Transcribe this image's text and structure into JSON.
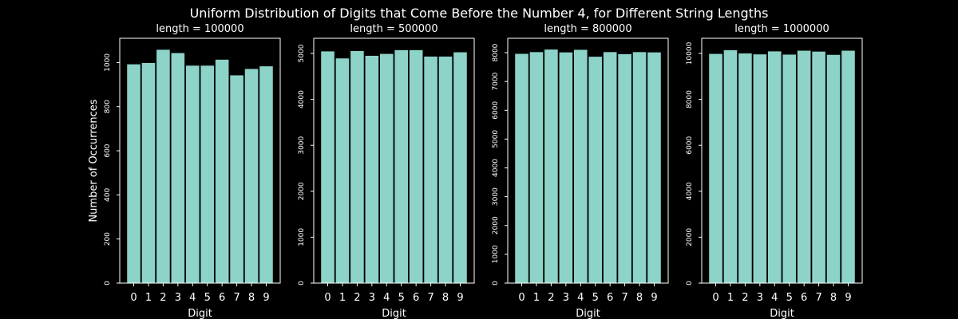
{
  "figure": {
    "suptitle": "Uniform Distribution of Digits that Come Before the Number 4, for Different String Lengths",
    "background": "#000000",
    "bar_color": "#8dd3c7",
    "text_color": "#ffffff"
  },
  "chart_data": [
    {
      "type": "bar",
      "title": "length = 100000",
      "xlabel": "Digit",
      "ylabel": "Number of Occurrences",
      "categories": [
        "0",
        "1",
        "2",
        "3",
        "4",
        "5",
        "6",
        "7",
        "8",
        "9"
      ],
      "values": [
        992,
        998,
        1058,
        1043,
        986,
        986,
        1013,
        942,
        971,
        983
      ],
      "ylim": [
        0,
        1110
      ],
      "yticks": [
        0,
        200,
        400,
        600,
        800,
        1000
      ],
      "ytick_labels": [
        "0",
        "200",
        "400",
        "600",
        "800",
        "1000"
      ]
    },
    {
      "type": "bar",
      "title": "length = 500000",
      "xlabel": "Digit",
      "ylabel": "",
      "categories": [
        "0",
        "1",
        "2",
        "3",
        "4",
        "5",
        "6",
        "7",
        "8",
        "9"
      ],
      "values": [
        5045,
        4892,
        5052,
        4949,
        4990,
        5072,
        5072,
        4932,
        4932,
        5025
      ],
      "ylim": [
        0,
        5330
      ],
      "yticks": [
        0,
        1000,
        2000,
        3000,
        4000,
        5000
      ],
      "ytick_labels": [
        "0",
        "1000",
        "2000",
        "3000",
        "4000",
        "5000"
      ]
    },
    {
      "type": "bar",
      "title": "length = 800000",
      "xlabel": "Digit",
      "ylabel": "",
      "categories": [
        "0",
        "1",
        "2",
        "3",
        "4",
        "5",
        "6",
        "7",
        "8",
        "9"
      ],
      "values": [
        7960,
        8020,
        8110,
        8010,
        8100,
        7860,
        8020,
        7950,
        8020,
        8010
      ],
      "ylim": [
        0,
        8500
      ],
      "yticks": [
        0,
        1000,
        2000,
        3000,
        4000,
        5000,
        6000,
        7000,
        8000
      ],
      "ytick_labels": [
        "0",
        "1000",
        "2000",
        "3000",
        "4000",
        "5000",
        "6000",
        "7000",
        "8000"
      ]
    },
    {
      "type": "bar",
      "title": "length = 1000000",
      "xlabel": "Digit",
      "ylabel": "",
      "categories": [
        "0",
        "1",
        "2",
        "3",
        "4",
        "5",
        "6",
        "7",
        "8",
        "9"
      ],
      "values": [
        9980,
        10140,
        10000,
        9960,
        10090,
        9950,
        10120,
        10080,
        9940,
        10120
      ],
      "ylim": [
        0,
        10660
      ],
      "yticks": [
        0,
        2000,
        4000,
        6000,
        8000,
        10000
      ],
      "ytick_labels": [
        "0",
        "2000",
        "4000",
        "6000",
        "8000",
        "10000"
      ]
    }
  ]
}
